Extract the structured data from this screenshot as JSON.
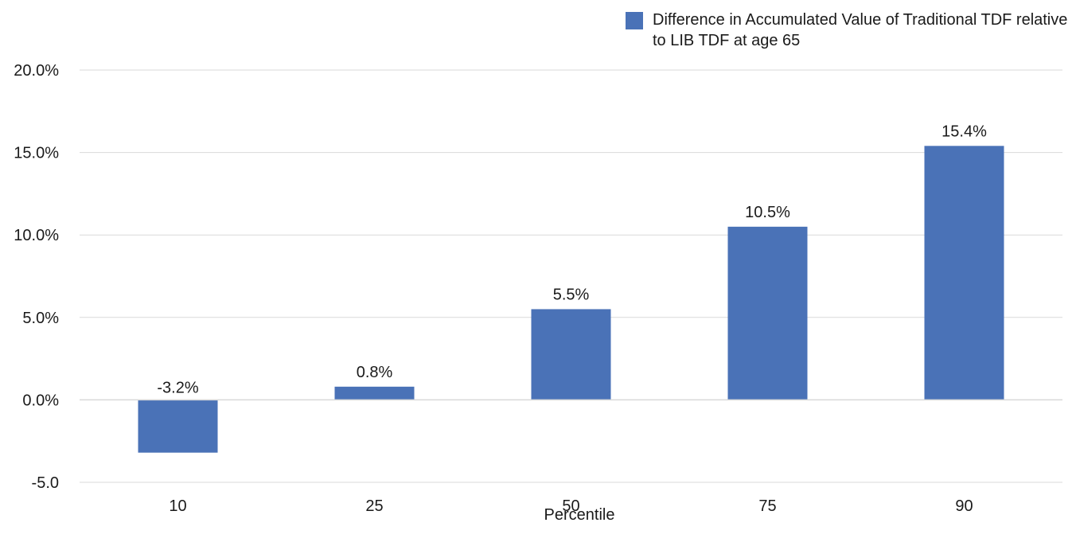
{
  "chart_data": {
    "type": "bar",
    "title": "",
    "xlabel": "Percentile",
    "ylabel": "",
    "categories": [
      "10",
      "25",
      "50",
      "75",
      "90"
    ],
    "series": [
      {
        "name": "Difference in Accumulated Value of Traditional TDF relative to LIB TDF at age 65",
        "values": [
          -3.2,
          0.8,
          5.5,
          10.5,
          15.4
        ],
        "data_labels": [
          "-3.2%",
          "0.8%",
          "5.5%",
          "10.5%",
          "15.4%"
        ],
        "color": "#4a72b7"
      }
    ],
    "ylim": [
      -5,
      20
    ],
    "yticks": [
      20,
      15,
      10,
      5,
      0,
      -5
    ],
    "ytick_labels": [
      "20.0%",
      "15.0%",
      "10.0%",
      "5.0%",
      "0.0%",
      "-5.0"
    ],
    "grid": true,
    "legend_position": "top-right",
    "gridline_color": "#d9d9d9",
    "text_color": "#1a1a1a"
  }
}
